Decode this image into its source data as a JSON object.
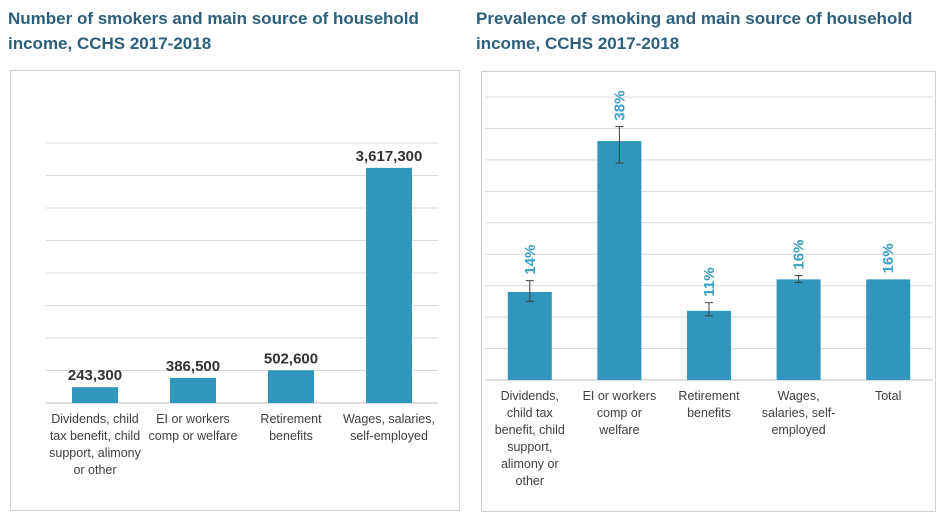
{
  "colors": {
    "bar": "#3196bd",
    "title": "#2d5f7c",
    "percent_label": "#3a9ec6"
  },
  "chart_data": [
    {
      "type": "bar",
      "title": "Number of smokers and main source of household income, CCHS 2017-2018",
      "categories": [
        "Dividends, child tax benefit, child support, alimony or other",
        "EI or workers comp or welfare",
        "Retirement benefits",
        "Wages, salaries, self-employed"
      ],
      "values": [
        243300,
        386500,
        502600,
        3617300
      ],
      "data_labels": [
        "243,300",
        "386,500",
        "502,600",
        "3,617,300"
      ],
      "ylim": [
        0,
        4000000
      ],
      "grid": true,
      "xlabel": "",
      "ylabel": ""
    },
    {
      "type": "bar",
      "title": "Prevalence of smoking and main source of household income, CCHS 2017-2018",
      "categories": [
        "Dividends, child tax benefit, child support, alimony or other",
        "EI or workers comp or welfare",
        "Retirement benefits",
        "Wages, salaries, self-employed",
        "Total"
      ],
      "values": [
        14,
        38,
        11,
        16,
        16
      ],
      "error_bars": [
        [
          12.5,
          15.8
        ],
        [
          34.5,
          40.3
        ],
        [
          10.2,
          12.3
        ],
        [
          15.5,
          16.6
        ],
        null
      ],
      "data_labels": [
        "14%",
        "38%",
        "11%",
        "16%",
        "16%"
      ],
      "ylim": [
        0,
        45
      ],
      "grid": true,
      "xlabel": "",
      "ylabel": ""
    }
  ]
}
